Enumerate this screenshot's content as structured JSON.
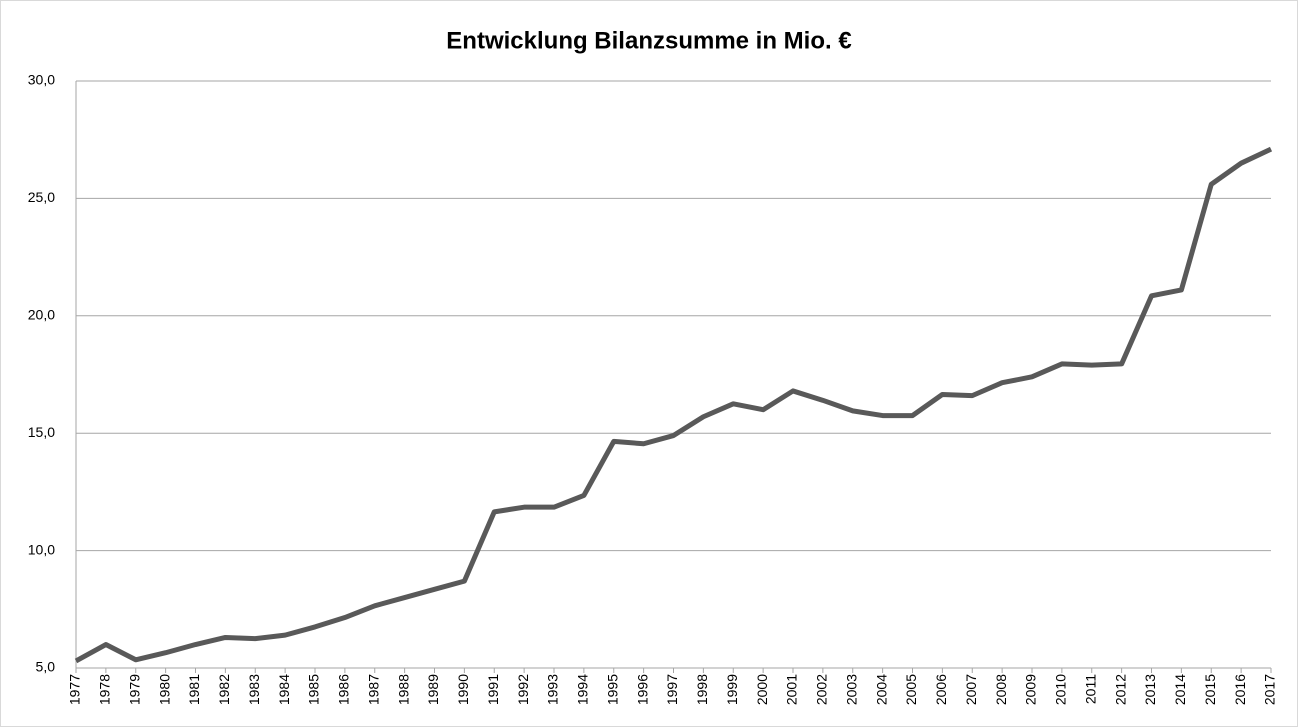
{
  "chart_data": {
    "type": "line",
    "title": "Entwicklung Bilanzsumme in Mio. €",
    "categories": [
      "1977",
      "1978",
      "1979",
      "1980",
      "1981",
      "1982",
      "1983",
      "1984",
      "1985",
      "1986",
      "1987",
      "1988",
      "1989",
      "1990",
      "1991",
      "1992",
      "1993",
      "1994",
      "1995",
      "1996",
      "1997",
      "1998",
      "1999",
      "2000",
      "2001",
      "2002",
      "2003",
      "2004",
      "2005",
      "2006",
      "2007",
      "2008",
      "2009",
      "2010",
      "2011",
      "2012",
      "2013",
      "2014",
      "2015",
      "2016",
      "2017"
    ],
    "values": [
      5.3,
      6.0,
      5.35,
      5.65,
      6.0,
      6.3,
      6.25,
      6.4,
      6.75,
      7.15,
      7.65,
      8.0,
      8.35,
      8.7,
      11.65,
      11.85,
      11.85,
      12.35,
      14.65,
      14.55,
      14.9,
      15.7,
      16.25,
      16.0,
      16.8,
      16.4,
      15.95,
      15.75,
      15.75,
      16.65,
      16.6,
      17.15,
      17.4,
      17.95,
      17.9,
      17.95,
      20.85,
      21.1,
      25.6,
      26.5,
      27.1
    ],
    "color": "#595959",
    "ylim": [
      5,
      30
    ],
    "yticks": [
      {
        "value": 5,
        "label": "5,0"
      },
      {
        "value": 10,
        "label": "10,0"
      },
      {
        "value": 15,
        "label": "15,0"
      },
      {
        "value": 20,
        "label": "20,0"
      },
      {
        "value": 25,
        "label": "25,0"
      },
      {
        "value": 30,
        "label": "30,0"
      }
    ],
    "grid": true
  }
}
